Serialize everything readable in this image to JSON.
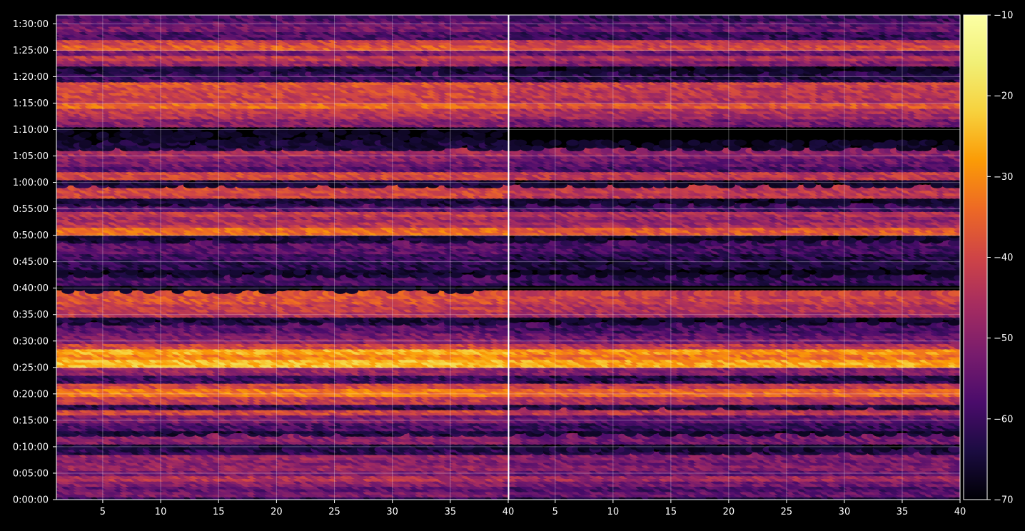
{
  "chart_data": {
    "type": "heatmap",
    "title": "",
    "xlabel": "",
    "ylabel": "",
    "grid": true,
    "background": "#000000",
    "colormap": "inferno",
    "panels": [
      {
        "x_ticks": [
          "5",
          "10",
          "15",
          "20",
          "25",
          "30",
          "35",
          "40"
        ],
        "xlim": [
          1,
          40
        ]
      },
      {
        "x_ticks": [
          "5",
          "10",
          "15",
          "20",
          "25",
          "30",
          "35",
          "40"
        ],
        "xlim": [
          1,
          40
        ]
      }
    ],
    "y_ticks": [
      "0:00:00",
      "0:05:00",
      "0:10:00",
      "0:15:00",
      "0:20:00",
      "0:25:00",
      "0:30:00",
      "0:35:00",
      "0:40:00",
      "0:45:00",
      "0:50:00",
      "0:55:00",
      "1:00:00",
      "1:05:00",
      "1:10:00",
      "1:15:00",
      "1:20:00",
      "1:25:00",
      "1:30:00"
    ],
    "ylim": [
      "0:00:00",
      "1:31:40"
    ],
    "colorbar": {
      "ticks": [
        "−70",
        "−60",
        "−50",
        "−40",
        "−30",
        "−20",
        "−10"
      ],
      "range": [
        -70,
        -10
      ]
    },
    "row_profile_minutes": [
      [
        0.0,
        -62
      ],
      [
        1.0,
        -52
      ],
      [
        2.0,
        -55
      ],
      [
        3.0,
        -50
      ],
      [
        4.0,
        -44
      ],
      [
        5.0,
        -52
      ],
      [
        6.0,
        -48
      ],
      [
        7.0,
        -50
      ],
      [
        8.0,
        -48
      ],
      [
        9.0,
        -62
      ],
      [
        10.0,
        -66
      ],
      [
        11.5,
        -50
      ],
      [
        12.5,
        -66
      ],
      [
        14.0,
        -58
      ],
      [
        15.5,
        -52
      ],
      [
        16.5,
        -40
      ],
      [
        17.5,
        -62
      ],
      [
        19.0,
        -42
      ],
      [
        20.5,
        -32
      ],
      [
        21.5,
        -40
      ],
      [
        22.5,
        -60
      ],
      [
        24.5,
        -48
      ],
      [
        26.0,
        -24
      ],
      [
        27.0,
        -30
      ],
      [
        28.0,
        -26
      ],
      [
        29.0,
        -40
      ],
      [
        30.0,
        -50
      ],
      [
        31.0,
        -52
      ],
      [
        32.5,
        -56
      ],
      [
        34.0,
        -66
      ],
      [
        35.0,
        -44
      ],
      [
        36.5,
        -42
      ],
      [
        38.0,
        -38
      ],
      [
        40.0,
        -70
      ],
      [
        41.5,
        -58
      ],
      [
        43.0,
        -68
      ],
      [
        44.5,
        -62
      ],
      [
        46.0,
        -60
      ],
      [
        47.5,
        -56
      ],
      [
        49.5,
        -66
      ],
      [
        51.0,
        -34
      ],
      [
        52.0,
        -44
      ],
      [
        53.0,
        -46
      ],
      [
        54.0,
        -42
      ],
      [
        55.0,
        -56
      ],
      [
        56.5,
        -66
      ],
      [
        58.0,
        -40
      ],
      [
        60.0,
        -66
      ],
      [
        61.5,
        -40
      ],
      [
        62.5,
        -56
      ],
      [
        63.5,
        -52
      ],
      [
        64.5,
        -50
      ],
      [
        65.5,
        -46
      ],
      [
        67.0,
        -66
      ],
      [
        68.5,
        -70
      ],
      [
        70.0,
        -70
      ],
      [
        71.5,
        -50
      ],
      [
        72.5,
        -44
      ],
      [
        73.5,
        -42
      ],
      [
        74.5,
        -34
      ],
      [
        75.5,
        -42
      ],
      [
        76.5,
        -40
      ],
      [
        77.5,
        -40
      ],
      [
        78.5,
        -38
      ],
      [
        80.0,
        -60
      ],
      [
        81.5,
        -66
      ],
      [
        82.5,
        -48
      ],
      [
        83.5,
        -42
      ],
      [
        84.5,
        -52
      ],
      [
        85.5,
        -36
      ],
      [
        86.5,
        -40
      ],
      [
        88.0,
        -58
      ],
      [
        89.0,
        -52
      ],
      [
        90.0,
        -54
      ],
      [
        91.0,
        -58
      ]
    ],
    "annotations": []
  }
}
